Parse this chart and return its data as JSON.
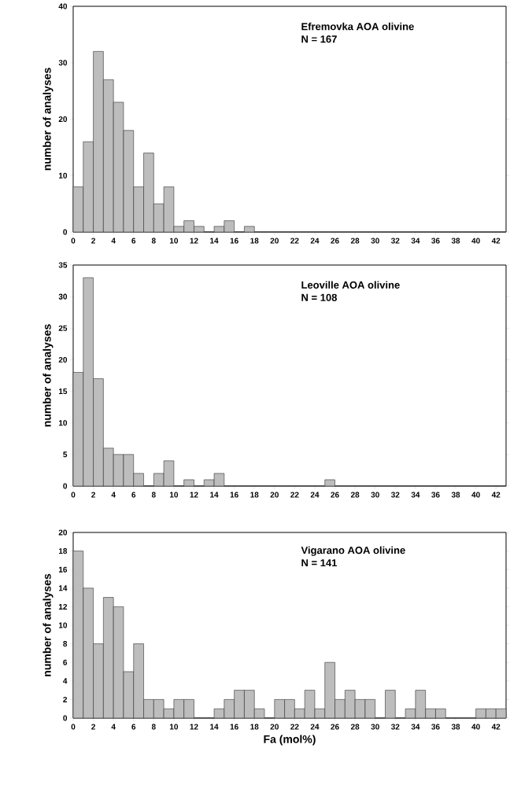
{
  "chart_data": [
    {
      "type": "histogram",
      "bins": [
        0,
        1,
        2,
        3,
        4,
        5,
        6,
        7,
        8,
        9,
        10,
        11,
        12,
        13,
        14,
        15,
        16,
        17,
        18,
        19,
        20,
        21,
        22,
        23,
        24,
        25,
        26,
        27,
        28,
        29,
        30,
        31,
        32,
        33,
        34,
        35,
        36,
        37,
        38,
        39,
        40,
        41,
        42,
        43
      ],
      "values": [
        8,
        16,
        32,
        27,
        23,
        18,
        8,
        14,
        5,
        8,
        1,
        2,
        1,
        0,
        1,
        2,
        0,
        1,
        0,
        0,
        0,
        0,
        0,
        0,
        0,
        0,
        0,
        0,
        0,
        0,
        0,
        0,
        0,
        0,
        0,
        0,
        0,
        0,
        0,
        0,
        0,
        0,
        0
      ],
      "color": "#bdbdbd",
      "xlim": [
        0,
        43
      ],
      "xticks": [
        0,
        2,
        4,
        6,
        8,
        10,
        12,
        14,
        16,
        18,
        20,
        22,
        24,
        26,
        28,
        30,
        32,
        34,
        36,
        38,
        40,
        42
      ],
      "ylim": [
        0,
        40
      ],
      "yticks": [
        0,
        10,
        20,
        30,
        40
      ],
      "ylabel": "number of analyses",
      "annotations": [
        "Efremovka AOA olivine",
        "N = 167"
      ]
    },
    {
      "type": "histogram",
      "bins": [
        0,
        1,
        2,
        3,
        4,
        5,
        6,
        7,
        8,
        9,
        10,
        11,
        12,
        13,
        14,
        15,
        16,
        17,
        18,
        19,
        20,
        21,
        22,
        23,
        24,
        25,
        26,
        27,
        28,
        29,
        30,
        31,
        32,
        33,
        34,
        35,
        36,
        37,
        38,
        39,
        40,
        41,
        42,
        43
      ],
      "values": [
        18,
        33,
        17,
        6,
        5,
        5,
        2,
        0,
        2,
        4,
        0,
        1,
        0,
        1,
        2,
        0,
        0,
        0,
        0,
        0,
        0,
        0,
        0,
        0,
        0,
        1,
        0,
        0,
        0,
        0,
        0,
        0,
        0,
        0,
        0,
        0,
        0,
        0,
        0,
        0,
        0,
        0,
        0
      ],
      "color": "#bdbdbd",
      "xlim": [
        0,
        43
      ],
      "xticks": [
        0,
        2,
        4,
        6,
        8,
        10,
        12,
        14,
        16,
        18,
        20,
        22,
        24,
        26,
        28,
        30,
        32,
        34,
        36,
        38,
        40,
        42
      ],
      "ylim": [
        0,
        35
      ],
      "yticks": [
        0,
        5,
        10,
        15,
        20,
        25,
        30,
        35
      ],
      "ylabel": "number of analyses",
      "annotations": [
        "Leoville AOA olivine",
        "N = 108"
      ]
    },
    {
      "type": "histogram",
      "bins": [
        0,
        1,
        2,
        3,
        4,
        5,
        6,
        7,
        8,
        9,
        10,
        11,
        12,
        13,
        14,
        15,
        16,
        17,
        18,
        19,
        20,
        21,
        22,
        23,
        24,
        25,
        26,
        27,
        28,
        29,
        30,
        31,
        32,
        33,
        34,
        35,
        36,
        37,
        38,
        39,
        40,
        41,
        42,
        43
      ],
      "values": [
        18,
        14,
        8,
        13,
        12,
        5,
        8,
        2,
        2,
        1,
        2,
        2,
        0,
        0,
        1,
        2,
        3,
        3,
        1,
        0,
        2,
        2,
        1,
        3,
        1,
        6,
        2,
        3,
        2,
        2,
        0,
        3,
        0,
        1,
        3,
        1,
        1,
        0,
        0,
        0,
        1,
        1,
        1
      ],
      "color": "#bdbdbd",
      "xlim": [
        0,
        43
      ],
      "xticks": [
        0,
        2,
        4,
        6,
        8,
        10,
        12,
        14,
        16,
        18,
        20,
        22,
        24,
        26,
        28,
        30,
        32,
        34,
        36,
        38,
        40,
        42
      ],
      "ylim": [
        0,
        20
      ],
      "yticks": [
        0,
        2,
        4,
        6,
        8,
        10,
        12,
        14,
        16,
        18,
        20
      ],
      "ylabel": "number of analyses",
      "xlabel": "Fa (mol%)",
      "annotations": [
        "Vigarano AOA olivine",
        "N = 141"
      ]
    }
  ]
}
